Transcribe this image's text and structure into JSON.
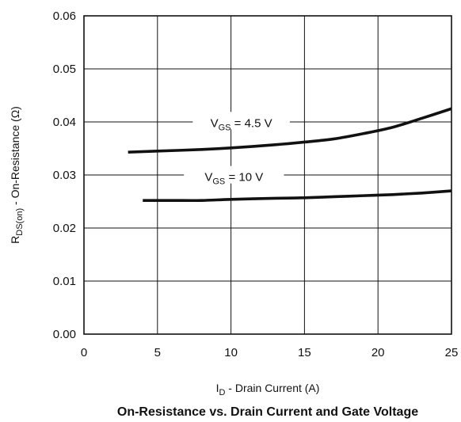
{
  "chart_data": {
    "type": "line",
    "title": "On-Resistance vs. Drain Current and Gate Voltage",
    "xlabel": {
      "main": "I",
      "sub": "D",
      "rest": " - Drain Current (A)"
    },
    "ylabel": {
      "main": "R",
      "sub": "DS(on)",
      "rest": " - On-Resistance (Ω)"
    },
    "xlim": [
      0,
      25
    ],
    "ylim": [
      0,
      0.06
    ],
    "x_ticks": [
      0,
      5,
      10,
      15,
      20,
      25
    ],
    "y_ticks": [
      0.0,
      0.01,
      0.02,
      0.03,
      0.04,
      0.05,
      0.06
    ],
    "x_tick_labels": [
      "0",
      "5",
      "10",
      "15",
      "20",
      "25"
    ],
    "y_tick_labels": [
      "0.00",
      "0.01",
      "0.02",
      "0.03",
      "0.04",
      "0.05",
      "0.06"
    ],
    "grid": true,
    "series": [
      {
        "name": "VGS = 4.5 V",
        "label": {
          "main": "V",
          "sub": "GS",
          "rest": " = 4.5 V"
        },
        "x": [
          3,
          5,
          8,
          10,
          13,
          15,
          17,
          19,
          21,
          23,
          25
        ],
        "y": [
          0.0343,
          0.0345,
          0.0348,
          0.0351,
          0.0357,
          0.0362,
          0.0368,
          0.0378,
          0.039,
          0.0407,
          0.0425
        ]
      },
      {
        "name": "VGS = 10 V",
        "label": {
          "main": "V",
          "sub": "GS",
          "rest": " = 10 V"
        },
        "x": [
          4,
          6,
          8,
          10,
          13,
          15,
          17,
          19,
          21,
          23,
          25
        ],
        "y": [
          0.0252,
          0.0252,
          0.0252,
          0.0254,
          0.0256,
          0.0257,
          0.0259,
          0.0261,
          0.0263,
          0.0266,
          0.027
        ]
      }
    ]
  }
}
